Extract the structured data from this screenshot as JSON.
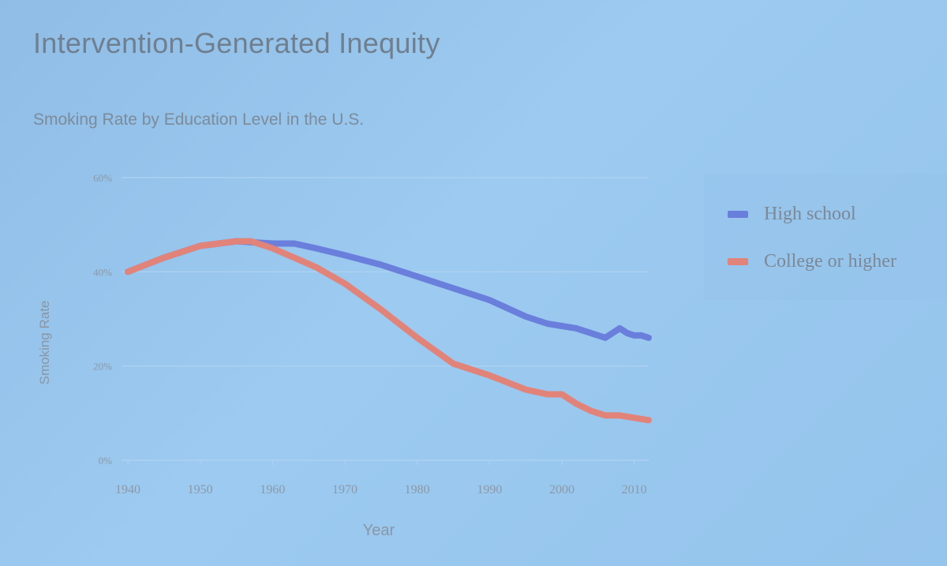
{
  "slide": {
    "title": "Intervention-Generated Inequity",
    "subtitle": "Smoking Rate by Education Level in the U.S."
  },
  "chart_data": {
    "type": "line",
    "xlabel": "Year",
    "ylabel": "Smoking Rate",
    "xlim": [
      1940,
      2012
    ],
    "ylim": [
      0,
      60
    ],
    "x_ticks": [
      "1940",
      "1950",
      "1960",
      "1970",
      "1980",
      "1990",
      "2000",
      "2010"
    ],
    "y_ticks": [
      "0%",
      "20%",
      "40%",
      "60%"
    ],
    "grid": true,
    "legend": "right",
    "series": [
      {
        "name": "High school",
        "color": "#6a7fdc",
        "x": [
          1940,
          1945,
          1950,
          1955,
          1960,
          1963,
          1966,
          1970,
          1975,
          1980,
          1985,
          1990,
          1995,
          1998,
          2000,
          2002,
          2004,
          2006,
          2007,
          2008,
          2009,
          2010,
          2011,
          2012
        ],
        "values": [
          40,
          43,
          45.5,
          46.5,
          46,
          46,
          45,
          43.5,
          41.5,
          39,
          36.5,
          34,
          30.5,
          29,
          28.5,
          28,
          27,
          26,
          27,
          28,
          27,
          26.5,
          26.5,
          26
        ]
      },
      {
        "name": "College or higher",
        "color": "#e2837a",
        "x": [
          1940,
          1945,
          1950,
          1955,
          1957,
          1960,
          1963,
          1966,
          1970,
          1975,
          1980,
          1985,
          1990,
          1995,
          1998,
          2000,
          2002,
          2004,
          2006,
          2008,
          2010,
          2012
        ],
        "values": [
          40,
          43,
          45.5,
          46.5,
          46.5,
          45,
          43,
          41,
          37.5,
          32,
          26,
          20.5,
          18,
          15,
          14,
          14,
          12,
          10.5,
          9.5,
          9.5,
          9,
          8.5
        ]
      }
    ]
  }
}
